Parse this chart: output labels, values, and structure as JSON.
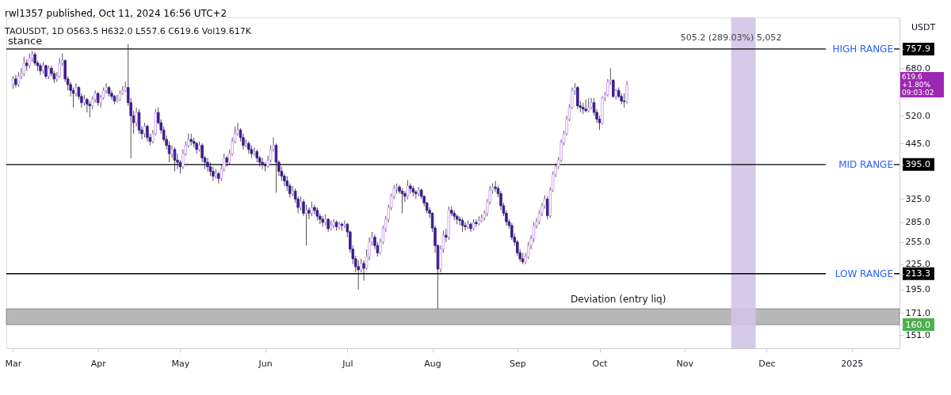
{
  "chart_data": {
    "type": "candlestick",
    "title": "rwl1357 published, Oct 11, 2024 16:56 UTC+2",
    "subtitle": "TAOUSDT, 1D  O563.5  H632.0  L557.6  C619.6  Vol19.617K",
    "colors": [
      "#c89cf0",
      "#3d1d8f",
      "#c89cf0",
      "#c89cf0",
      "#c89cf0",
      "#3d1d8f",
      "#c89cf0",
      "#c89cf0",
      "#3d1d8f",
      "#3d1d8f",
      "#3d1d8f",
      "#c89cf0",
      "#3d1d8f",
      "#c89cf0",
      "#3d1d8f",
      "#3d1d8f",
      "#c89cf0",
      "#c89cf0",
      "#c89cf0",
      "#3d1d8f",
      "#3d1d8f",
      "#3d1d8f",
      "#3d1d8f",
      "#c89cf0",
      "#3d1d8f",
      "#3d1d8f",
      "#c89cf0",
      "#3d1d8f",
      "#3d1d8f",
      "#c89cf0",
      "#c89cf0",
      "#3d1d8f",
      "#c89cf0",
      "#c89cf0",
      "#c89cf0",
      "#3d1d8f",
      "#3d1d8f",
      "#3d1d8f",
      "#c89cf0",
      "#c89cf0",
      "#c89cf0",
      "#c89cf0",
      "#3d1d8f",
      "#3d1d8f",
      "#3d1d8f",
      "#c89cf0",
      "#3d1d8f",
      "#3d1d8f",
      "#c89cf0",
      "#3d1d8f",
      "#3d1d8f",
      "#c89cf0",
      "#c89cf0",
      "#3d1d8f",
      "#3d1d8f",
      "#3d1d8f",
      "#3d1d8f",
      "#3d1d8f",
      "#c89cf0",
      "#3d1d8f",
      "#3d1d8f",
      "#3d1d8f",
      "#c89cf0",
      "#c89cf0",
      "#c89cf0",
      "#3d1d8f",
      "#3d1d8f",
      "#3d1d8f",
      "#c89cf0",
      "#3d1d8f",
      "#3d1d8f",
      "#3d1d8f",
      "#3d1d8f",
      "#3d1d8f",
      "#c89cf0",
      "#3d1d8f",
      "#c89cf0",
      "#c89cf0",
      "#3d1d8f",
      "#c89cf0",
      "#c89cf0",
      "#c89cf0",
      "#c89cf0",
      "#3d1d8f",
      "#3d1d8f",
      "#c89cf0",
      "#3d1d8f",
      "#3d1d8f",
      "#c89cf0",
      "#3d1d8f",
      "#3d1d8f",
      "#3d1d8f",
      "#3d1d8f",
      "#c89cf0",
      "#c89cf0",
      "#c89cf0",
      "#3d1d8f",
      "#3d1d8f",
      "#3d1d8f",
      "#3d1d8f",
      "#3d1d8f",
      "#3d1d8f",
      "#c89cf0",
      "#3d1d8f",
      "#3d1d8f",
      "#c89cf0",
      "#3d1d8f",
      "#c89cf0",
      "#3d1d8f",
      "#c89cf0",
      "#3d1d8f",
      "#3d1d8f",
      "#3d1d8f",
      "#3d1d8f",
      "#c89cf0",
      "#3d1d8f",
      "#c89cf0",
      "#c89cf0",
      "#3d1d8f",
      "#c89cf0",
      "#3d1d8f",
      "#c89cf0",
      "#3d1d8f",
      "#3d1d8f",
      "#3d1d8f",
      "#3d1d8f",
      "#3d1d8f",
      "#c89cf0",
      "#3d1d8f",
      "#c89cf0",
      "#c89cf0",
      "#c89cf0",
      "#3d1d8f",
      "#3d1d8f",
      "#c89cf0",
      "#c89cf0",
      "#c89cf0",
      "#c89cf0",
      "#c89cf0",
      "#c89cf0",
      "#c89cf0",
      "#3d1d8f",
      "#3d1d8f",
      "#3d1d8f",
      "#c89cf0",
      "#3d1d8f",
      "#3d1d8f",
      "#3d1d8f",
      "#c89cf0",
      "#3d1d8f",
      "#3d1d8f",
      "#3d1d8f",
      "#3d1d8f",
      "#3d1d8f",
      "#3d1d8f",
      "#3d1d8f",
      "#c89cf0",
      "#c89cf0",
      "#3d1d8f",
      "#c89cf0",
      "#3d1d8f",
      "#3d1d8f",
      "#3d1d8f",
      "#3d1d8f",
      "#3d1d8f",
      "#3d1d8f",
      "#c89cf0",
      "#3d1d8f",
      "#c89cf0",
      "#3d1d8f",
      "#c89cf0",
      "#c89cf0",
      "#c89cf0",
      "#c89cf0",
      "#c89cf0",
      "#c89cf0",
      "#3d1d8f",
      "#3d1d8f",
      "#3d1d8f",
      "#3d1d8f",
      "#3d1d8f",
      "#3d1d8f",
      "#3d1d8f",
      "#3d1d8f",
      "#3d1d8f",
      "#3d1d8f",
      "#3d1d8f",
      "#c89cf0",
      "#c89cf0",
      "#c89cf0",
      "#c89cf0",
      "#c89cf0",
      "#c89cf0",
      "#c89cf0",
      "#c89cf0",
      "#3d1d8f",
      "#c89cf0",
      "#c89cf0",
      "#c89cf0",
      "#c89cf0",
      "#c89cf0",
      "#c89cf0",
      "#c89cf0",
      "#c89cf0",
      "#c89cf0",
      "#c89cf0",
      "#3d1d8f",
      "#3d1d8f",
      "#3d1d8f",
      "#3d1d8f",
      "#c89cf0",
      "#c89cf0",
      "#3d1d8f",
      "#3d1d8f",
      "#3d1d8f",
      "#c89cf0",
      "#c89cf0",
      "#c89cf0",
      "#c89cf0",
      "#3d1d8f",
      "#c89cf0",
      "#3d1d8f",
      "#3d1d8f",
      "#3d1d8f",
      "#c89cf0"
    ],
    "x": [
      "2024-03-01",
      "2024-03-02",
      "2024-03-03",
      "2024-03-04",
      "2024-03-05",
      "2024-03-06",
      "2024-03-07",
      "2024-03-08",
      "2024-03-09",
      "2024-03-10",
      "2024-03-11",
      "2024-03-12",
      "2024-03-13",
      "2024-03-14",
      "2024-03-15",
      "2024-03-16",
      "2024-03-17",
      "2024-03-18",
      "2024-03-19",
      "2024-03-20",
      "2024-03-21",
      "2024-03-22",
      "2024-03-23",
      "2024-03-24",
      "2024-03-25",
      "2024-03-26",
      "2024-03-27",
      "2024-03-28",
      "2024-03-29",
      "2024-03-30",
      "2024-03-31",
      "2024-04-01",
      "2024-04-02",
      "2024-04-03",
      "2024-04-04",
      "2024-04-05",
      "2024-04-06",
      "2024-04-07",
      "2024-04-08",
      "2024-04-09",
      "2024-04-10",
      "2024-04-11",
      "2024-04-12",
      "2024-04-13",
      "2024-04-14",
      "2024-04-15",
      "2024-04-16",
      "2024-04-17",
      "2024-04-18",
      "2024-04-19",
      "2024-04-20",
      "2024-04-21",
      "2024-04-22",
      "2024-04-23",
      "2024-04-24",
      "2024-04-25",
      "2024-04-26",
      "2024-04-27",
      "2024-04-28",
      "2024-04-29",
      "2024-04-30",
      "2024-05-01",
      "2024-05-02",
      "2024-05-03",
      "2024-05-04",
      "2024-05-05",
      "2024-05-06",
      "2024-05-07",
      "2024-05-08",
      "2024-05-09",
      "2024-05-10",
      "2024-05-11",
      "2024-05-12",
      "2024-05-13",
      "2024-05-14",
      "2024-05-15",
      "2024-05-16",
      "2024-05-17",
      "2024-05-18",
      "2024-05-19",
      "2024-05-20",
      "2024-05-21",
      "2024-05-22",
      "2024-05-23",
      "2024-05-24",
      "2024-05-25",
      "2024-05-26",
      "2024-05-27",
      "2024-05-28",
      "2024-05-29",
      "2024-05-30",
      "2024-05-31",
      "2024-06-01",
      "2024-06-02",
      "2024-06-03",
      "2024-06-04",
      "2024-06-05",
      "2024-06-06",
      "2024-06-07",
      "2024-06-08",
      "2024-06-09",
      "2024-06-10",
      "2024-06-11",
      "2024-06-12",
      "2024-06-13",
      "2024-06-14",
      "2024-06-15",
      "2024-06-16",
      "2024-06-17",
      "2024-06-18",
      "2024-06-19",
      "2024-06-20",
      "2024-06-21",
      "2024-06-22",
      "2024-06-23",
      "2024-06-24",
      "2024-06-25",
      "2024-06-26",
      "2024-06-27",
      "2024-06-28",
      "2024-06-29",
      "2024-06-30",
      "2024-07-01",
      "2024-07-02",
      "2024-07-03",
      "2024-07-04",
      "2024-07-05",
      "2024-07-06",
      "2024-07-07",
      "2024-07-08",
      "2024-07-09",
      "2024-07-10",
      "2024-07-11",
      "2024-07-12",
      "2024-07-13",
      "2024-07-14",
      "2024-07-15",
      "2024-07-16",
      "2024-07-17",
      "2024-07-18",
      "2024-07-19",
      "2024-07-20",
      "2024-07-21",
      "2024-07-22",
      "2024-07-23",
      "2024-07-24",
      "2024-07-25",
      "2024-07-26",
      "2024-07-27",
      "2024-07-28",
      "2024-07-29",
      "2024-07-30",
      "2024-07-31",
      "2024-08-01",
      "2024-08-02",
      "2024-08-03",
      "2024-08-04",
      "2024-08-05",
      "2024-08-06",
      "2024-08-07",
      "2024-08-08",
      "2024-08-09",
      "2024-08-10",
      "2024-08-11",
      "2024-08-12",
      "2024-08-13",
      "2024-08-14",
      "2024-08-15",
      "2024-08-16",
      "2024-08-17",
      "2024-08-18",
      "2024-08-19",
      "2024-08-20",
      "2024-08-21",
      "2024-08-22",
      "2024-08-23",
      "2024-08-24",
      "2024-08-25",
      "2024-08-26",
      "2024-08-27",
      "2024-08-28",
      "2024-08-29",
      "2024-08-30",
      "2024-08-31",
      "2024-09-01",
      "2024-09-02",
      "2024-09-03",
      "2024-09-04",
      "2024-09-05",
      "2024-09-06",
      "2024-09-07",
      "2024-09-08",
      "2024-09-09",
      "2024-09-10",
      "2024-09-11",
      "2024-09-12",
      "2024-09-13",
      "2024-09-14",
      "2024-09-15",
      "2024-09-16",
      "2024-09-17",
      "2024-09-18",
      "2024-09-19",
      "2024-09-20",
      "2024-09-21",
      "2024-09-22",
      "2024-09-23",
      "2024-09-24",
      "2024-09-25",
      "2024-09-26",
      "2024-09-27",
      "2024-09-28",
      "2024-09-29",
      "2024-09-30",
      "2024-10-01",
      "2024-10-02",
      "2024-10-03",
      "2024-10-04",
      "2024-10-05",
      "2024-10-06",
      "2024-10-07",
      "2024-10-08",
      "2024-10-09",
      "2024-10-10",
      "2024-10-11"
    ],
    "ohlc": [
      [
        620,
        650,
        605,
        640
      ],
      [
        640,
        655,
        610,
        620
      ],
      [
        620,
        665,
        612,
        650
      ],
      [
        650,
        680,
        640,
        660
      ],
      [
        660,
        725,
        650,
        700
      ],
      [
        700,
        715,
        670,
        690
      ],
      [
        690,
        740,
        680,
        720
      ],
      [
        720,
        750,
        705,
        735
      ],
      [
        735,
        745,
        690,
        700
      ],
      [
        700,
        710,
        670,
        690
      ],
      [
        690,
        700,
        655,
        670
      ],
      [
        670,
        705,
        660,
        690
      ],
      [
        690,
        695,
        640,
        650
      ],
      [
        650,
        690,
        640,
        680
      ],
      [
        680,
        690,
        650,
        660
      ],
      [
        660,
        670,
        625,
        640
      ],
      [
        640,
        665,
        630,
        650
      ],
      [
        650,
        720,
        645,
        700
      ],
      [
        700,
        740,
        690,
        710
      ],
      [
        710,
        715,
        630,
        640
      ],
      [
        640,
        650,
        600,
        620
      ],
      [
        620,
        630,
        580,
        600
      ],
      [
        600,
        610,
        545,
        590
      ],
      [
        590,
        625,
        580,
        610
      ],
      [
        610,
        615,
        570,
        580
      ],
      [
        580,
        590,
        545,
        560
      ],
      [
        560,
        585,
        550,
        570
      ],
      [
        570,
        575,
        530,
        555
      ],
      [
        555,
        565,
        515,
        550
      ],
      [
        550,
        580,
        540,
        570
      ],
      [
        570,
        600,
        560,
        590
      ],
      [
        590,
        595,
        550,
        560
      ],
      [
        560,
        585,
        545,
        575
      ],
      [
        575,
        610,
        570,
        600
      ],
      [
        600,
        625,
        590,
        610
      ],
      [
        610,
        615,
        580,
        590
      ],
      [
        590,
        600,
        570,
        580
      ],
      [
        580,
        585,
        555,
        565
      ],
      [
        565,
        585,
        560,
        570
      ],
      [
        570,
        600,
        565,
        590
      ],
      [
        590,
        615,
        585,
        600
      ],
      [
        600,
        630,
        595,
        610
      ],
      [
        610,
        780,
        550,
        560
      ],
      [
        560,
        575,
        409,
        520
      ],
      [
        520,
        535,
        470,
        500
      ],
      [
        500,
        545,
        490,
        530
      ],
      [
        530,
        540,
        470,
        480
      ],
      [
        480,
        490,
        455,
        470
      ],
      [
        470,
        500,
        460,
        490
      ],
      [
        490,
        495,
        450,
        460
      ],
      [
        460,
        470,
        440,
        450
      ],
      [
        450,
        480,
        445,
        470
      ],
      [
        470,
        540,
        465,
        530
      ],
      [
        530,
        545,
        495,
        500
      ],
      [
        500,
        510,
        470,
        480
      ],
      [
        480,
        490,
        450,
        455
      ],
      [
        455,
        465,
        430,
        440
      ],
      [
        440,
        450,
        400,
        420
      ],
      [
        420,
        440,
        410,
        430
      ],
      [
        430,
        435,
        380,
        405
      ],
      [
        405,
        420,
        385,
        400
      ],
      [
        400,
        405,
        375,
        390
      ],
      [
        390,
        430,
        385,
        420
      ],
      [
        420,
        450,
        415,
        440
      ],
      [
        440,
        470,
        435,
        455
      ],
      [
        455,
        470,
        440,
        450
      ],
      [
        450,
        460,
        435,
        445
      ],
      [
        445,
        450,
        420,
        430
      ],
      [
        430,
        450,
        425,
        440
      ],
      [
        440,
        445,
        400,
        410
      ],
      [
        410,
        415,
        385,
        400
      ],
      [
        400,
        410,
        380,
        390
      ],
      [
        390,
        400,
        370,
        380
      ],
      [
        380,
        390,
        360,
        370
      ],
      [
        370,
        385,
        365,
        375
      ],
      [
        375,
        380,
        355,
        365
      ],
      [
        365,
        395,
        360,
        385
      ],
      [
        385,
        420,
        380,
        410
      ],
      [
        410,
        415,
        390,
        400
      ],
      [
        400,
        430,
        395,
        420
      ],
      [
        420,
        460,
        415,
        450
      ],
      [
        450,
        490,
        445,
        470
      ],
      [
        470,
        500,
        465,
        480
      ],
      [
        480,
        485,
        450,
        460
      ],
      [
        460,
        470,
        430,
        440
      ],
      [
        440,
        455,
        435,
        445
      ],
      [
        445,
        450,
        420,
        430
      ],
      [
        430,
        440,
        410,
        420
      ],
      [
        420,
        435,
        415,
        425
      ],
      [
        425,
        430,
        400,
        410
      ],
      [
        410,
        415,
        390,
        400
      ],
      [
        400,
        410,
        385,
        395
      ],
      [
        395,
        400,
        380,
        392
      ],
      [
        392,
        415,
        388,
        405
      ],
      [
        405,
        440,
        400,
        430
      ],
      [
        430,
        460,
        425,
        440
      ],
      [
        440,
        445,
        337,
        400
      ],
      [
        400,
        405,
        370,
        380
      ],
      [
        380,
        390,
        360,
        370
      ],
      [
        370,
        375,
        350,
        360
      ],
      [
        360,
        370,
        340,
        350
      ],
      [
        350,
        355,
        328,
        335
      ],
      [
        335,
        350,
        330,
        340
      ],
      [
        340,
        345,
        318,
        325
      ],
      [
        325,
        330,
        300,
        310
      ],
      [
        310,
        330,
        305,
        320
      ],
      [
        320,
        325,
        295,
        300
      ],
      [
        300,
        315,
        250,
        305
      ],
      [
        305,
        310,
        290,
        300
      ],
      [
        300,
        320,
        295,
        310
      ],
      [
        310,
        315,
        298,
        305
      ],
      [
        305,
        310,
        288,
        295
      ],
      [
        295,
        300,
        282,
        290
      ],
      [
        290,
        295,
        278,
        285
      ],
      [
        285,
        298,
        280,
        290
      ],
      [
        290,
        292,
        270,
        275
      ],
      [
        275,
        288,
        272,
        280
      ],
      [
        280,
        290,
        276,
        285
      ],
      [
        285,
        288,
        272,
        278
      ],
      [
        278,
        286,
        274,
        282
      ],
      [
        282,
        285,
        272,
        280
      ],
      [
        280,
        288,
        276,
        282
      ],
      [
        282,
        284,
        262,
        270
      ],
      [
        270,
        272,
        240,
        245
      ],
      [
        245,
        250,
        225,
        232
      ],
      [
        232,
        236,
        215,
        222
      ],
      [
        222,
        230,
        195,
        218
      ],
      [
        218,
        232,
        215,
        226
      ],
      [
        226,
        230,
        205,
        220
      ],
      [
        220,
        245,
        218,
        235
      ],
      [
        235,
        262,
        230,
        255
      ],
      [
        255,
        270,
        250,
        262
      ],
      [
        262,
        266,
        245,
        250
      ],
      [
        250,
        255,
        235,
        240
      ],
      [
        240,
        260,
        238,
        255
      ],
      [
        255,
        280,
        252,
        275
      ],
      [
        275,
        295,
        270,
        290
      ],
      [
        290,
        315,
        285,
        310
      ],
      [
        310,
        335,
        305,
        330
      ],
      [
        330,
        352,
        325,
        345
      ],
      [
        345,
        355,
        335,
        348
      ],
      [
        348,
        352,
        335,
        340
      ],
      [
        340,
        345,
        300,
        335
      ],
      [
        335,
        340,
        320,
        330
      ],
      [
        330,
        362,
        325,
        350
      ],
      [
        350,
        355,
        335,
        345
      ],
      [
        345,
        350,
        330,
        338
      ],
      [
        338,
        342,
        325,
        335
      ],
      [
        335,
        348,
        330,
        342
      ],
      [
        342,
        345,
        325,
        330
      ],
      [
        330,
        332,
        312,
        318
      ],
      [
        318,
        320,
        300,
        305
      ],
      [
        305,
        310,
        292,
        300
      ],
      [
        300,
        302,
        270,
        276
      ],
      [
        276,
        280,
        240,
        250
      ],
      [
        250,
        252,
        160,
        219
      ],
      [
        219,
        250,
        215,
        245
      ],
      [
        245,
        272,
        240,
        265
      ],
      [
        265,
        275,
        255,
        262
      ],
      [
        262,
        312,
        258,
        305
      ],
      [
        305,
        312,
        295,
        300
      ],
      [
        300,
        305,
        288,
        295
      ],
      [
        295,
        298,
        282,
        290
      ],
      [
        290,
        295,
        280,
        288
      ],
      [
        288,
        292,
        270,
        280
      ],
      [
        280,
        285,
        272,
        278
      ],
      [
        278,
        288,
        275,
        282
      ],
      [
        282,
        285,
        270,
        275
      ],
      [
        275,
        290,
        272,
        285
      ],
      [
        285,
        290,
        278,
        283
      ],
      [
        283,
        295,
        280,
        288
      ],
      [
        288,
        298,
        285,
        292
      ],
      [
        292,
        305,
        288,
        300
      ],
      [
        300,
        325,
        295,
        320
      ],
      [
        320,
        350,
        315,
        342
      ],
      [
        342,
        355,
        335,
        348
      ],
      [
        348,
        360,
        338,
        345
      ],
      [
        345,
        350,
        328,
        335
      ],
      [
        335,
        340,
        305,
        313
      ],
      [
        313,
        318,
        295,
        300
      ],
      [
        300,
        305,
        280,
        286
      ],
      [
        286,
        290,
        275,
        280
      ],
      [
        280,
        284,
        258,
        262
      ],
      [
        262,
        268,
        250,
        255
      ],
      [
        255,
        258,
        236,
        240
      ],
      [
        240,
        245,
        228,
        232
      ],
      [
        232,
        240,
        225,
        228
      ],
      [
        228,
        240,
        225,
        235
      ],
      [
        235,
        255,
        232,
        250
      ],
      [
        250,
        265,
        245,
        260
      ],
      [
        260,
        285,
        255,
        280
      ],
      [
        280,
        292,
        275,
        286
      ],
      [
        286,
        305,
        282,
        300
      ],
      [
        300,
        318,
        295,
        313
      ],
      [
        313,
        332,
        308,
        325
      ],
      [
        325,
        330,
        290,
        296
      ],
      [
        296,
        348,
        292,
        342
      ],
      [
        342,
        380,
        338,
        374
      ],
      [
        374,
        398,
        368,
        390
      ],
      [
        390,
        412,
        385,
        405
      ],
      [
        405,
        455,
        400,
        447
      ],
      [
        447,
        478,
        440,
        470
      ],
      [
        470,
        520,
        465,
        510
      ],
      [
        510,
        555,
        505,
        545
      ],
      [
        545,
        610,
        540,
        600
      ],
      [
        600,
        625,
        585,
        610
      ],
      [
        610,
        615,
        540,
        550
      ],
      [
        550,
        565,
        530,
        545
      ],
      [
        545,
        560,
        525,
        540
      ],
      [
        540,
        570,
        530,
        535
      ],
      [
        535,
        575,
        530,
        545
      ],
      [
        545,
        575,
        540,
        560
      ],
      [
        560,
        575,
        520,
        530
      ],
      [
        530,
        540,
        500,
        510
      ],
      [
        510,
        520,
        480,
        500
      ],
      [
        500,
        580,
        495,
        575
      ],
      [
        575,
        595,
        565,
        585
      ],
      [
        585,
        640,
        580,
        630
      ],
      [
        630,
        680,
        620,
        635
      ],
      [
        635,
        640,
        575,
        580
      ],
      [
        580,
        605,
        570,
        600
      ],
      [
        600,
        610,
        575,
        580
      ],
      [
        580,
        590,
        555,
        565
      ],
      [
        565,
        590,
        545,
        563.5
      ],
      [
        563.5,
        632,
        557.6,
        619.6
      ]
    ],
    "xlim": [
      "2024-02-29",
      "2025-01-17"
    ],
    "xticks": [
      {
        "value": "2024-03-01",
        "label": "Mar"
      },
      {
        "value": "2024-04-01",
        "label": "Apr"
      },
      {
        "value": "2024-05-01",
        "label": "May"
      },
      {
        "value": "2024-06-01",
        "label": "Jun"
      },
      {
        "value": "2024-07-01",
        "label": "Jul"
      },
      {
        "value": "2024-08-01",
        "label": "Aug"
      },
      {
        "value": "2024-09-01",
        "label": "Sep"
      },
      {
        "value": "2024-10-01",
        "label": "Oct"
      },
      {
        "value": "2024-11-01",
        "label": "Nov"
      },
      {
        "value": "2024-12-01",
        "label": "Dec"
      },
      {
        "value": "2025-01-01",
        "label": "2025"
      }
    ],
    "ylim": [
      140,
      906
    ],
    "log": true,
    "yticks": [
      {
        "value": 151,
        "label": "151.0"
      },
      {
        "value": 171,
        "label": "171.0"
      },
      {
        "value": 195,
        "label": "195.0"
      },
      {
        "value": 225,
        "label": "225.0"
      },
      {
        "value": 255,
        "label": "255.0"
      },
      {
        "value": 285,
        "label": "285.0"
      },
      {
        "value": 325,
        "label": "325.0"
      },
      {
        "value": 445,
        "label": "445.0"
      },
      {
        "value": 520,
        "label": "520.0"
      },
      {
        "value": 680,
        "label": "680.0"
      },
      {
        "value": 757.9,
        "label": "757.9"
      },
      {
        "value": 395.0,
        "label": "395.0"
      },
      {
        "value": 213.3,
        "label": "213.3"
      },
      {
        "value": 160.0,
        "label": "160.0"
      }
    ],
    "ylabel": "USDT",
    "grid": false,
    "ref_lines": [
      {
        "axis": "y",
        "value": 757.9,
        "label": "HIGH RANGE",
        "color": "#000000"
      },
      {
        "axis": "y",
        "value": 395.0,
        "label": "MID RANGE",
        "color": "#000000"
      },
      {
        "axis": "y",
        "value": 213.3,
        "label": "LOW RANGE",
        "color": "#000000"
      }
    ],
    "bands": [
      {
        "axis": "y",
        "from": 160.0,
        "to": 175,
        "color": "#b8b8b8"
      },
      {
        "axis": "x",
        "from": "2024-11-18",
        "to": "2024-11-27",
        "color": "#d1c4e9",
        "label": "505.2 (289.03%) 5,052"
      }
    ],
    "annotations": [
      "stance",
      "Deviation (entry liq)",
      "619.6 +1.80% 09:03:02"
    ]
  }
}
